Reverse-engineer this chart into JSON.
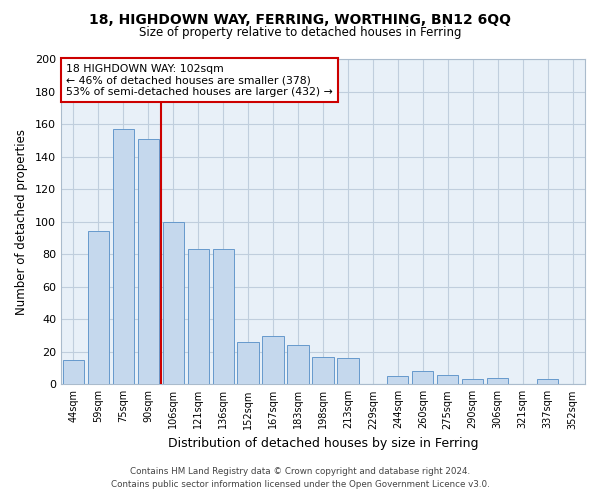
{
  "title": "18, HIGHDOWN WAY, FERRING, WORTHING, BN12 6QQ",
  "subtitle": "Size of property relative to detached houses in Ferring",
  "xlabel": "Distribution of detached houses by size in Ferring",
  "ylabel": "Number of detached properties",
  "categories": [
    "44sqm",
    "59sqm",
    "75sqm",
    "90sqm",
    "106sqm",
    "121sqm",
    "136sqm",
    "152sqm",
    "167sqm",
    "183sqm",
    "198sqm",
    "213sqm",
    "229sqm",
    "244sqm",
    "260sqm",
    "275sqm",
    "290sqm",
    "306sqm",
    "321sqm",
    "337sqm",
    "352sqm"
  ],
  "values": [
    15,
    94,
    157,
    151,
    100,
    83,
    83,
    26,
    30,
    24,
    17,
    16,
    0,
    5,
    8,
    6,
    3,
    4,
    0,
    3,
    0
  ],
  "bar_color": "#c5d8ed",
  "bar_edge_color": "#6699cc",
  "vline_x": 3.5,
  "vline_color": "#cc0000",
  "annotation_text": "18 HIGHDOWN WAY: 102sqm\n← 46% of detached houses are smaller (378)\n53% of semi-detached houses are larger (432) →",
  "annotation_box_color": "#ffffff",
  "annotation_box_edge": "#cc0000",
  "ylim": [
    0,
    200
  ],
  "yticks": [
    0,
    20,
    40,
    60,
    80,
    100,
    120,
    140,
    160,
    180,
    200
  ],
  "footer_line1": "Contains HM Land Registry data © Crown copyright and database right 2024.",
  "footer_line2": "Contains public sector information licensed under the Open Government Licence v3.0.",
  "bg_color": "#ffffff",
  "plot_bg_color": "#e8f0f8",
  "grid_color": "#c0cedd"
}
